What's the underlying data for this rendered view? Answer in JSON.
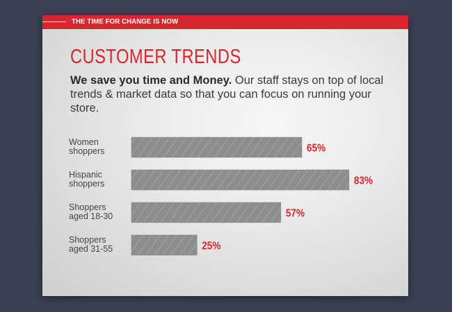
{
  "banner": {
    "text": "THE TIME FOR CHANGE IS NOW"
  },
  "title": "CUSTOMER TRENDS",
  "intro": {
    "bold": "We save you time and Money.",
    "rest": " Our staff stays on top of local trends & market data so that you can focus on running your store."
  },
  "colors": {
    "accent": "#d7262e",
    "bar": "#8c8c8c",
    "background": "#3a4153"
  },
  "chart_data": {
    "type": "bar",
    "orientation": "horizontal",
    "categories": [
      [
        "Women",
        "shoppers"
      ],
      [
        "Hispanic",
        "shoppers"
      ],
      [
        "Shoppers",
        "aged 18-30"
      ],
      [
        "Shoppers",
        "aged 31-55"
      ]
    ],
    "values": [
      65,
      83,
      57,
      25
    ],
    "value_labels": [
      "65%",
      "83%",
      "57%",
      "25%"
    ],
    "unit": "%",
    "xlim": [
      0,
      100
    ],
    "grid": false,
    "legend": "none"
  }
}
